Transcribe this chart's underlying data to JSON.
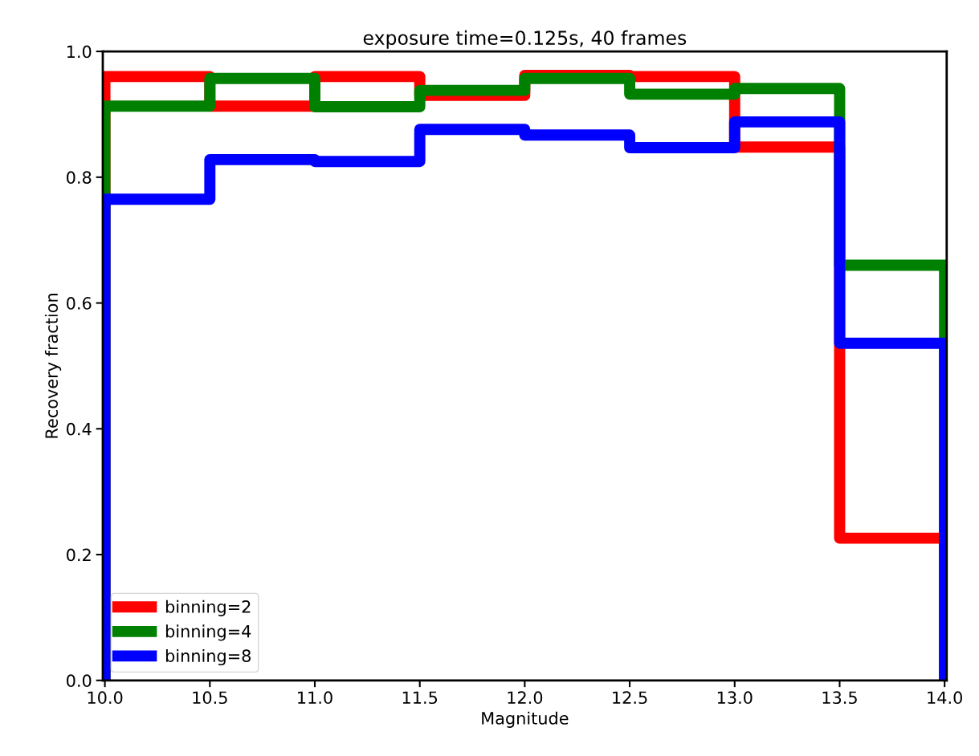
{
  "chart_data": {
    "type": "histogram",
    "title": "exposure time=0.125s, 40 frames",
    "xlabel": "Magnitude",
    "ylabel": "Recovery fraction",
    "bins": [
      10.0,
      10.5,
      11.0,
      11.5,
      12.0,
      12.5,
      13.0,
      13.5,
      14.0
    ],
    "series": [
      {
        "name": "binning=2",
        "color": "#ff0000",
        "values": [
          0.96,
          0.913,
          0.96,
          0.93,
          0.962,
          0.96,
          0.848,
          0.226
        ]
      },
      {
        "name": "binning=4",
        "color": "#008000",
        "values": [
          0.913,
          0.957,
          0.912,
          0.938,
          0.957,
          0.932,
          0.941,
          0.66
        ]
      },
      {
        "name": "binning=8",
        "color": "#0000ff",
        "values": [
          0.765,
          0.828,
          0.825,
          0.876,
          0.867,
          0.847,
          0.888,
          0.536
        ]
      }
    ],
    "xlim": [
      9.99,
      14.01
    ],
    "ylim": [
      0.0,
      1.0
    ],
    "xticks": [
      {
        "value": 10.0,
        "label": "10.0"
      },
      10.5,
      {
        "value": 11.0,
        "label": "11.0"
      },
      11.5,
      {
        "value": 12.0,
        "label": "12.0"
      },
      12.5,
      {
        "value": 13.0,
        "label": "13.0"
      },
      13.5,
      {
        "value": 14.0,
        "label": "14.0"
      }
    ],
    "yticks": [
      {
        "value": 0.0,
        "label": "0.0"
      },
      0.2,
      0.4,
      0.6,
      0.8,
      {
        "value": 1.0,
        "label": "1.0"
      }
    ],
    "legend": "lower left",
    "grid": false
  }
}
